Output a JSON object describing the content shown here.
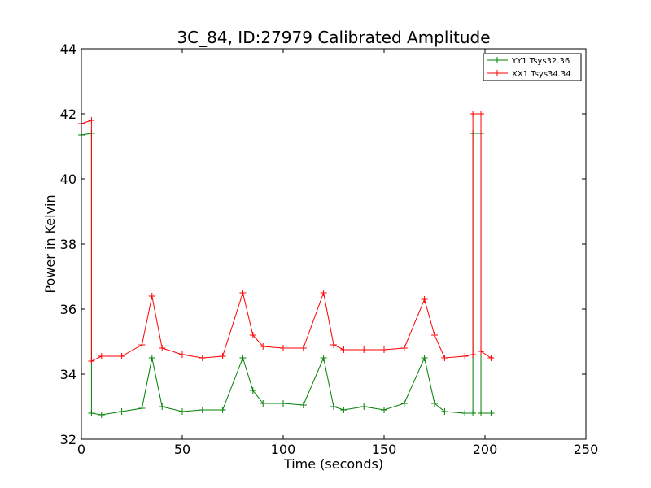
{
  "chart_data": {
    "type": "line",
    "title": "3C_84, ID:27979 Calibrated Amplitude",
    "xlabel": "Time (seconds)",
    "ylabel": "Power in Kelvin",
    "xlim": [
      0,
      250
    ],
    "ylim": [
      32,
      44
    ],
    "xticks": [
      0,
      50,
      100,
      150,
      200,
      250
    ],
    "yticks": [
      32,
      34,
      36,
      38,
      40,
      42,
      44
    ],
    "grid": false,
    "legend_position": "top-right",
    "marker": "+",
    "series": [
      {
        "name": "YY1 Tsys32.36",
        "color": "#008000",
        "x": [
          0,
          5,
          5,
          10,
          20,
          30,
          35,
          40,
          50,
          60,
          70,
          80,
          85,
          90,
          100,
          110,
          120,
          125,
          130,
          140,
          150,
          160,
          170,
          175,
          180,
          190,
          194,
          194,
          198,
          198,
          203
        ],
        "y": [
          41.35,
          41.4,
          32.8,
          32.75,
          32.85,
          32.95,
          34.5,
          33.0,
          32.85,
          32.9,
          32.9,
          34.5,
          33.5,
          33.1,
          33.1,
          33.05,
          34.5,
          33.0,
          32.9,
          33.0,
          32.9,
          33.1,
          34.5,
          33.1,
          32.85,
          32.8,
          32.8,
          41.4,
          41.4,
          32.8,
          32.8
        ]
      },
      {
        "name": "XX1 Tsys34.34",
        "color": "#ff0000",
        "x": [
          0,
          5,
          5,
          10,
          20,
          30,
          35,
          40,
          50,
          60,
          70,
          80,
          85,
          90,
          100,
          110,
          120,
          125,
          130,
          140,
          150,
          160,
          170,
          175,
          180,
          190,
          194,
          194,
          198,
          198,
          203
        ],
        "y": [
          41.7,
          41.8,
          34.4,
          34.55,
          34.55,
          34.9,
          36.4,
          34.8,
          34.6,
          34.5,
          34.55,
          36.5,
          35.2,
          34.85,
          34.8,
          34.8,
          36.5,
          34.9,
          34.75,
          34.75,
          34.75,
          34.8,
          36.3,
          35.2,
          34.5,
          34.55,
          34.6,
          42.0,
          42.0,
          34.7,
          34.5
        ]
      }
    ]
  }
}
